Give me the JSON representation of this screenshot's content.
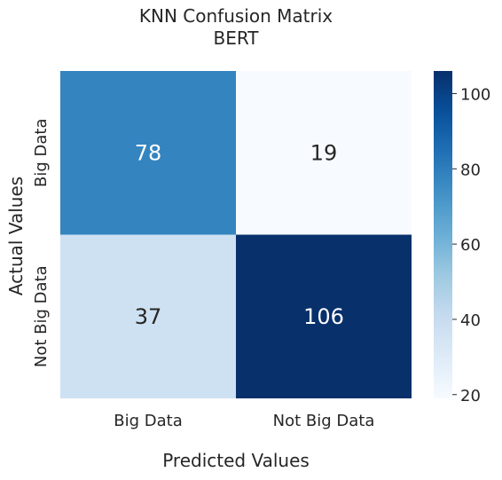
{
  "chart_data": {
    "type": "heatmap",
    "title": [
      "KNN Confusion Matrix",
      "BERT"
    ],
    "xlabel": "Predicted Values",
    "ylabel": "Actual Values",
    "x_categories": [
      "Big Data",
      "Not Big Data"
    ],
    "y_categories": [
      "Big Data",
      "Not Big Data"
    ],
    "values": [
      [
        78,
        19
      ],
      [
        37,
        106
      ]
    ],
    "colormap": "Blues",
    "colorbar": {
      "min": 19,
      "max": 106,
      "ticks": [
        20,
        40,
        60,
        80,
        100
      ]
    },
    "grid": false
  }
}
